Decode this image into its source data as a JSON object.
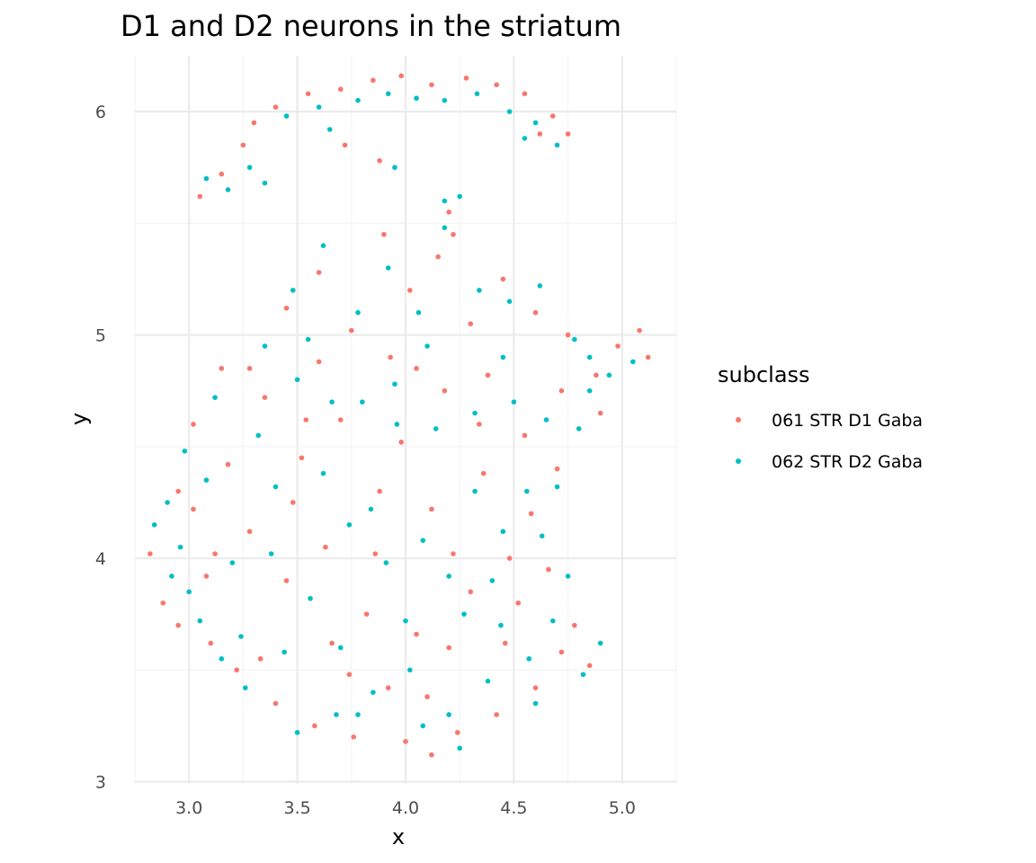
{
  "chart_data": {
    "type": "scatter",
    "title": "D1 and D2 neurons in the striatum",
    "xlabel": "x",
    "ylabel": "y",
    "xlim": [
      2.75,
      5.25
    ],
    "ylim": [
      2.99,
      6.25
    ],
    "x_ticks": [
      3.0,
      3.5,
      4.0,
      4.5,
      5.0
    ],
    "x_tick_labels": [
      "3.0",
      "3.5",
      "4.0",
      "4.5",
      "5.0"
    ],
    "y_ticks": [
      3,
      4,
      5,
      6
    ],
    "y_tick_labels": [
      "3",
      "4",
      "5",
      "6"
    ],
    "grid": true,
    "legend": {
      "title": "subclass",
      "placement": "right"
    },
    "series": [
      {
        "name": "061 STR D1 Gaba",
        "color": "#F8766D",
        "points": [
          [
            2.82,
            4.02
          ],
          [
            2.88,
            3.8
          ],
          [
            2.95,
            4.3
          ],
          [
            3.02,
            4.6
          ],
          [
            3.1,
            3.62
          ],
          [
            3.15,
            4.85
          ],
          [
            3.22,
            3.5
          ],
          [
            3.28,
            4.12
          ],
          [
            3.35,
            4.72
          ],
          [
            3.4,
            3.35
          ],
          [
            3.45,
            3.9
          ],
          [
            3.52,
            4.45
          ],
          [
            3.58,
            3.25
          ],
          [
            3.63,
            4.05
          ],
          [
            3.7,
            4.62
          ],
          [
            3.76,
            3.2
          ],
          [
            3.82,
            3.75
          ],
          [
            3.88,
            4.3
          ],
          [
            3.93,
            4.9
          ],
          [
            4.0,
            3.18
          ],
          [
            4.05,
            3.66
          ],
          [
            4.12,
            4.22
          ],
          [
            4.18,
            4.75
          ],
          [
            4.24,
            3.22
          ],
          [
            4.3,
            3.85
          ],
          [
            4.36,
            4.38
          ],
          [
            4.42,
            3.3
          ],
          [
            4.48,
            4.0
          ],
          [
            4.55,
            4.55
          ],
          [
            4.6,
            3.42
          ],
          [
            4.66,
            3.95
          ],
          [
            4.72,
            3.58
          ],
          [
            4.78,
            3.7
          ],
          [
            4.85,
            3.52
          ],
          [
            3.02,
            4.22
          ],
          [
            3.18,
            4.42
          ],
          [
            3.33,
            3.55
          ],
          [
            3.48,
            4.25
          ],
          [
            3.6,
            4.88
          ],
          [
            3.74,
            3.48
          ],
          [
            3.86,
            4.02
          ],
          [
            3.98,
            4.52
          ],
          [
            4.1,
            3.38
          ],
          [
            4.22,
            4.02
          ],
          [
            4.34,
            4.6
          ],
          [
            4.46,
            3.62
          ],
          [
            4.58,
            4.2
          ],
          [
            4.7,
            4.4
          ],
          [
            3.45,
            5.12
          ],
          [
            3.6,
            5.28
          ],
          [
            3.75,
            5.02
          ],
          [
            3.9,
            5.45
          ],
          [
            4.02,
            5.2
          ],
          [
            4.15,
            5.35
          ],
          [
            4.3,
            5.05
          ],
          [
            4.45,
            5.25
          ],
          [
            4.6,
            5.1
          ],
          [
            4.75,
            5.0
          ],
          [
            4.88,
            4.82
          ],
          [
            4.98,
            4.95
          ],
          [
            5.08,
            5.02
          ],
          [
            5.12,
            4.9
          ],
          [
            4.72,
            4.75
          ],
          [
            4.9,
            4.65
          ],
          [
            3.4,
            6.02
          ],
          [
            3.55,
            6.08
          ],
          [
            3.7,
            6.1
          ],
          [
            3.85,
            6.14
          ],
          [
            3.98,
            6.16
          ],
          [
            4.12,
            6.12
          ],
          [
            4.28,
            6.15
          ],
          [
            4.42,
            6.12
          ],
          [
            4.55,
            6.08
          ],
          [
            4.68,
            5.98
          ],
          [
            4.75,
            5.9
          ],
          [
            3.05,
            5.62
          ],
          [
            3.15,
            5.72
          ],
          [
            3.25,
            5.85
          ],
          [
            3.3,
            5.95
          ],
          [
            3.72,
            5.85
          ],
          [
            3.88,
            5.78
          ],
          [
            4.2,
            5.55
          ],
          [
            4.22,
            5.45
          ],
          [
            4.62,
            5.9
          ],
          [
            3.66,
            3.62
          ],
          [
            3.92,
            3.42
          ],
          [
            4.2,
            3.6
          ],
          [
            4.52,
            3.8
          ],
          [
            3.12,
            4.02
          ],
          [
            3.28,
            4.85
          ],
          [
            4.05,
            4.85
          ],
          [
            4.38,
            4.82
          ],
          [
            3.08,
            3.92
          ],
          [
            2.95,
            3.7
          ],
          [
            3.54,
            4.62
          ],
          [
            4.12,
            3.12
          ]
        ]
      },
      {
        "name": "062 STR D2 Gaba",
        "color": "#00BFC4",
        "points": [
          [
            2.84,
            4.15
          ],
          [
            2.92,
            3.92
          ],
          [
            2.98,
            4.48
          ],
          [
            3.05,
            3.72
          ],
          [
            3.12,
            4.72
          ],
          [
            3.2,
            3.98
          ],
          [
            3.26,
            3.42
          ],
          [
            3.32,
            4.55
          ],
          [
            3.38,
            4.02
          ],
          [
            3.44,
            3.58
          ],
          [
            3.5,
            4.8
          ],
          [
            3.56,
            3.82
          ],
          [
            3.62,
            4.38
          ],
          [
            3.68,
            3.3
          ],
          [
            3.74,
            4.15
          ],
          [
            3.8,
            4.7
          ],
          [
            3.85,
            3.4
          ],
          [
            3.91,
            3.98
          ],
          [
            3.96,
            4.6
          ],
          [
            4.02,
            3.5
          ],
          [
            4.08,
            4.08
          ],
          [
            4.14,
            4.58
          ],
          [
            4.2,
            3.3
          ],
          [
            4.27,
            3.75
          ],
          [
            4.32,
            4.3
          ],
          [
            4.38,
            3.45
          ],
          [
            4.45,
            4.12
          ],
          [
            4.5,
            4.7
          ],
          [
            4.57,
            3.55
          ],
          [
            4.63,
            4.1
          ],
          [
            4.68,
            3.72
          ],
          [
            4.75,
            3.92
          ],
          [
            4.82,
            3.48
          ],
          [
            4.9,
            3.62
          ],
          [
            2.9,
            4.25
          ],
          [
            3.08,
            4.35
          ],
          [
            3.24,
            3.65
          ],
          [
            3.4,
            4.32
          ],
          [
            3.55,
            4.98
          ],
          [
            3.7,
            3.6
          ],
          [
            3.84,
            4.22
          ],
          [
            3.95,
            4.78
          ],
          [
            4.08,
            3.25
          ],
          [
            4.2,
            3.92
          ],
          [
            4.32,
            4.65
          ],
          [
            4.44,
            3.7
          ],
          [
            4.56,
            4.3
          ],
          [
            4.7,
            4.32
          ],
          [
            3.48,
            5.2
          ],
          [
            3.62,
            5.4
          ],
          [
            3.78,
            5.1
          ],
          [
            3.92,
            5.3
          ],
          [
            4.06,
            5.1
          ],
          [
            4.18,
            5.48
          ],
          [
            4.34,
            5.2
          ],
          [
            4.48,
            5.15
          ],
          [
            4.62,
            5.22
          ],
          [
            4.78,
            4.98
          ],
          [
            4.85,
            4.9
          ],
          [
            4.94,
            4.82
          ],
          [
            5.05,
            4.88
          ],
          [
            4.65,
            4.62
          ],
          [
            4.8,
            4.58
          ],
          [
            4.85,
            4.75
          ],
          [
            3.45,
            5.98
          ],
          [
            3.6,
            6.02
          ],
          [
            3.78,
            6.05
          ],
          [
            3.92,
            6.08
          ],
          [
            4.05,
            6.06
          ],
          [
            4.18,
            6.05
          ],
          [
            4.33,
            6.08
          ],
          [
            4.48,
            6.0
          ],
          [
            4.6,
            5.95
          ],
          [
            4.7,
            5.85
          ],
          [
            3.08,
            5.7
          ],
          [
            3.18,
            5.65
          ],
          [
            3.28,
            5.75
          ],
          [
            3.35,
            5.68
          ],
          [
            3.65,
            5.92
          ],
          [
            3.95,
            5.75
          ],
          [
            4.18,
            5.6
          ],
          [
            4.25,
            5.62
          ],
          [
            4.55,
            5.88
          ],
          [
            3.5,
            3.22
          ],
          [
            3.78,
            3.3
          ],
          [
            4.0,
            3.72
          ],
          [
            4.4,
            3.9
          ],
          [
            4.6,
            3.35
          ],
          [
            3.15,
            3.55
          ],
          [
            3.35,
            4.95
          ],
          [
            4.1,
            4.95
          ],
          [
            4.45,
            4.9
          ],
          [
            3.0,
            3.85
          ],
          [
            2.96,
            4.05
          ],
          [
            3.66,
            4.7
          ],
          [
            4.25,
            3.15
          ]
        ]
      }
    ]
  }
}
